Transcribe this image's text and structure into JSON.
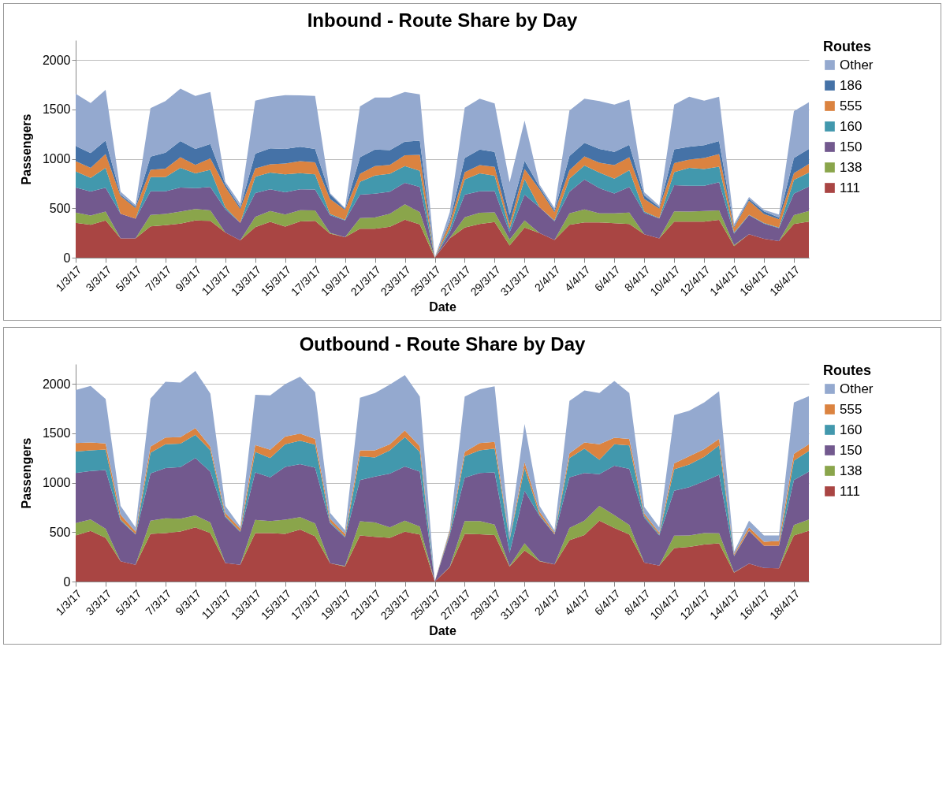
{
  "chart_data": [
    {
      "type": "area",
      "stacked": true,
      "title": "Inbound - Route Share by Day",
      "xlabel": "Date",
      "ylabel": "Passengers",
      "legend_title": "Routes",
      "legend": "right",
      "grid": "y",
      "categories": [
        "1/3/17",
        null,
        "3/3/17",
        null,
        "5/3/17",
        null,
        "7/3/17",
        null,
        "9/3/17",
        null,
        "11/3/17",
        null,
        "13/3/17",
        null,
        "15/3/17",
        null,
        "17/3/17",
        null,
        "19/3/17",
        null,
        "21/3/17",
        null,
        "23/3/17",
        null,
        "25/3/17",
        null,
        "27/3/17",
        null,
        "29/3/17",
        null,
        "31/3/17",
        null,
        "2/4/17",
        null,
        "4/4/17",
        null,
        "6/4/17",
        null,
        "8/4/17",
        null,
        "10/4/17",
        null,
        "12/4/17",
        null,
        "14/4/17",
        null,
        "16/4/17",
        null,
        "18/4/17",
        null
      ],
      "ylim": [
        0,
        2200
      ],
      "yticks": [
        0,
        500,
        1000,
        1500,
        2000
      ],
      "series": [
        {
          "name": "111",
          "color": "#a94543",
          "values": [
            353,
            333,
            377,
            196,
            196,
            316,
            328,
            345,
            377,
            372,
            256,
            176,
            309,
            362,
            314,
            367,
            372,
            244,
            208,
            292,
            292,
            312,
            384,
            336,
            0,
            196,
            304,
            341,
            360,
            123,
            304,
            249,
            179,
            333,
            357,
            357,
            348,
            341,
            237,
            196,
            365,
            365,
            365,
            382,
            118,
            237,
            191,
            167,
            341,
            365
          ]
        },
        {
          "name": "138",
          "color": "#8aa54b",
          "values": [
            103,
            94,
            89,
            0,
            0,
            116,
            114,
            121,
            116,
            106,
            0,
            0,
            104,
            111,
            123,
            114,
            106,
            7,
            0,
            109,
            114,
            132,
            157,
            125,
            0,
            4,
            104,
            113,
            99,
            61,
            73,
            0,
            0,
            116,
            131,
            92,
            101,
            115,
            0,
            0,
            104,
            101,
            108,
            96,
            10,
            0,
            0,
            0,
            89,
            108
          ]
        },
        {
          "name": "150",
          "color": "#72598e",
          "values": [
            254,
            242,
            242,
            248,
            198,
            239,
            229,
            244,
            210,
            237,
            234,
            177,
            241,
            218,
            225,
            210,
            212,
            179,
            169,
            237,
            241,
            223,
            217,
            254,
            0,
            56,
            230,
            217,
            215,
            72,
            261,
            261,
            190,
            218,
            304,
            254,
            201,
            259,
            217,
            200,
            265,
            261,
            254,
            285,
            116,
            193,
            154,
            132,
            217,
            247
          ]
        },
        {
          "name": "160",
          "color": "#4298ad",
          "values": [
            162,
            138,
            200,
            0,
            0,
            145,
            145,
            198,
            149,
            174,
            20,
            0,
            165,
            169,
            181,
            164,
            153,
            12,
            5,
            130,
            184,
            181,
            169,
            164,
            0,
            36,
            154,
            181,
            155,
            36,
            157,
            0,
            8,
            132,
            140,
            157,
            150,
            169,
            12,
            5,
            130,
            181,
            169,
            157,
            12,
            5,
            5,
            5,
            140,
            140
          ]
        },
        {
          "name": "555",
          "color": "#db8340",
          "values": [
            104,
            101,
            140,
            179,
            108,
            73,
            85,
            109,
            87,
            116,
            205,
            140,
            84,
            84,
            109,
            121,
            121,
            152,
            103,
            80,
            96,
            91,
            109,
            162,
            0,
            60,
            73,
            85,
            89,
            49,
            101,
            181,
            84,
            85,
            92,
            101,
            137,
            133,
            128,
            96,
            92,
            85,
            113,
            128,
            48,
            140,
            92,
            85,
            68,
            89
          ]
        },
        {
          "name": "186",
          "color": "#4572a7",
          "values": [
            154,
            150,
            138,
            15,
            15,
            133,
            162,
            162,
            162,
            145,
            29,
            17,
            150,
            162,
            149,
            145,
            137,
            48,
            8,
            169,
            167,
            150,
            138,
            142,
            0,
            25,
            144,
            157,
            152,
            91,
            85,
            24,
            17,
            145,
            138,
            140,
            133,
            125,
            36,
            13,
            140,
            128,
            128,
            131,
            13,
            19,
            27,
            17,
            154,
            152
          ]
        },
        {
          "name": "Other",
          "color": "#94a9cf",
          "values": [
            527,
            507,
            512,
            29,
            17,
            490,
            521,
            531,
            536,
            526,
            24,
            36,
            536,
            519,
            544,
            521,
            536,
            12,
            9,
            514,
            526,
            531,
            502,
            469,
            0,
            84,
            508,
            514,
            490,
            331,
            405,
            24,
            24,
            459,
            446,
            483,
            478,
            457,
            32,
            16,
            452,
            507,
            452,
            449,
            24,
            19,
            16,
            31,
            474,
            471
          ]
        }
      ]
    },
    {
      "type": "area",
      "stacked": true,
      "title": "Outbound - Route Share by Day",
      "xlabel": "Date",
      "ylabel": "Passengers",
      "legend_title": "Routes",
      "legend": "right",
      "grid": "y",
      "categories": [
        "1/3/17",
        null,
        "3/3/17",
        null,
        "5/3/17",
        null,
        "7/3/17",
        null,
        "9/3/17",
        null,
        "11/3/17",
        null,
        "13/3/17",
        null,
        "15/3/17",
        null,
        "17/3/17",
        null,
        "19/3/17",
        null,
        "21/3/17",
        null,
        "23/3/17",
        null,
        "25/3/17",
        null,
        "27/3/17",
        null,
        "29/3/17",
        null,
        "31/3/17",
        null,
        "2/4/17",
        null,
        "4/4/17",
        null,
        "6/4/17",
        null,
        "8/4/17",
        null,
        "10/4/17",
        null,
        "12/4/17",
        null,
        "14/4/17",
        null,
        "16/4/17",
        null,
        "18/4/17",
        null
      ],
      "ylim": [
        0,
        2200
      ],
      "yticks": [
        0,
        500,
        1000,
        1500,
        2000
      ],
      "series": [
        {
          "name": "111",
          "color": "#a94543",
          "values": [
            466,
            512,
            442,
            205,
            169,
            483,
            490,
            507,
            548,
            490,
            188,
            169,
            490,
            490,
            483,
            526,
            459,
            186,
            152,
            466,
            452,
            442,
            505,
            476,
            0,
            145,
            483,
            478,
            471,
            152,
            314,
            205,
            174,
            418,
            471,
            616,
            543,
            476,
            191,
            162,
            338,
            350,
            374,
            386,
            89,
            181,
            138,
            133,
            466,
            514
          ]
        },
        {
          "name": "138",
          "color": "#8aa54b",
          "values": [
            126,
            116,
            92,
            0,
            0,
            133,
            150,
            128,
            121,
            107,
            0,
            0,
            133,
            121,
            143,
            126,
            128,
            0,
            5,
            143,
            145,
            106,
            111,
            79,
            0,
            5,
            128,
            133,
            104,
            5,
            72,
            5,
            0,
            125,
            145,
            150,
            128,
            96,
            0,
            0,
            126,
            116,
            116,
            102,
            5,
            0,
            0,
            0,
            106,
            114
          ]
        },
        {
          "name": "150",
          "color": "#72598e",
          "values": [
            507,
            490,
            594,
            411,
            307,
            478,
            507,
            522,
            580,
            514,
            464,
            331,
            481,
            444,
            533,
            536,
            565,
            406,
            290,
            417,
            466,
            544,
            548,
            556,
            0,
            321,
            440,
            488,
            529,
            133,
            532,
            454,
            302,
            512,
            483,
            321,
            500,
            568,
            454,
            304,
            454,
            488,
            524,
            592,
            164,
            331,
            224,
            229,
            454,
            483
          ]
        },
        {
          "name": "160",
          "color": "#4298ad",
          "values": [
            217,
            210,
            208,
            12,
            5,
            210,
            242,
            237,
            236,
            217,
            12,
            7,
            208,
            194,
            230,
            237,
            232,
            12,
            7,
            242,
            193,
            236,
            297,
            200,
            0,
            19,
            217,
            229,
            241,
            133,
            229,
            12,
            5,
            194,
            246,
            145,
            218,
            237,
            19,
            10,
            217,
            229,
            247,
            297,
            5,
            5,
            0,
            0,
            198,
            210
          ]
        },
        {
          "name": "555",
          "color": "#db8340",
          "values": [
            85,
            78,
            60,
            48,
            26,
            61,
            67,
            67,
            68,
            37,
            29,
            29,
            69,
            84,
            77,
            72,
            58,
            31,
            29,
            60,
            72,
            61,
            68,
            58,
            0,
            24,
            43,
            73,
            68,
            12,
            61,
            32,
            14,
            48,
            61,
            157,
            65,
            65,
            24,
            19,
            60,
            85,
            79,
            65,
            15,
            31,
            41,
            49,
            68,
            68
          ]
        },
        {
          "name": "Other",
          "color": "#94a9cf",
          "values": [
            536,
            572,
            452,
            90,
            41,
            487,
            565,
            551,
            577,
            536,
            73,
            19,
            508,
            551,
            531,
            575,
            473,
            61,
            36,
            532,
            580,
            603,
            560,
            503,
            0,
            17,
            561,
            543,
            562,
            60,
            386,
            58,
            24,
            531,
            526,
            519,
            575,
            466,
            68,
            53,
            488,
            459,
            471,
            483,
            24,
            68,
            63,
            55,
            519,
            487
          ]
        }
      ]
    }
  ]
}
